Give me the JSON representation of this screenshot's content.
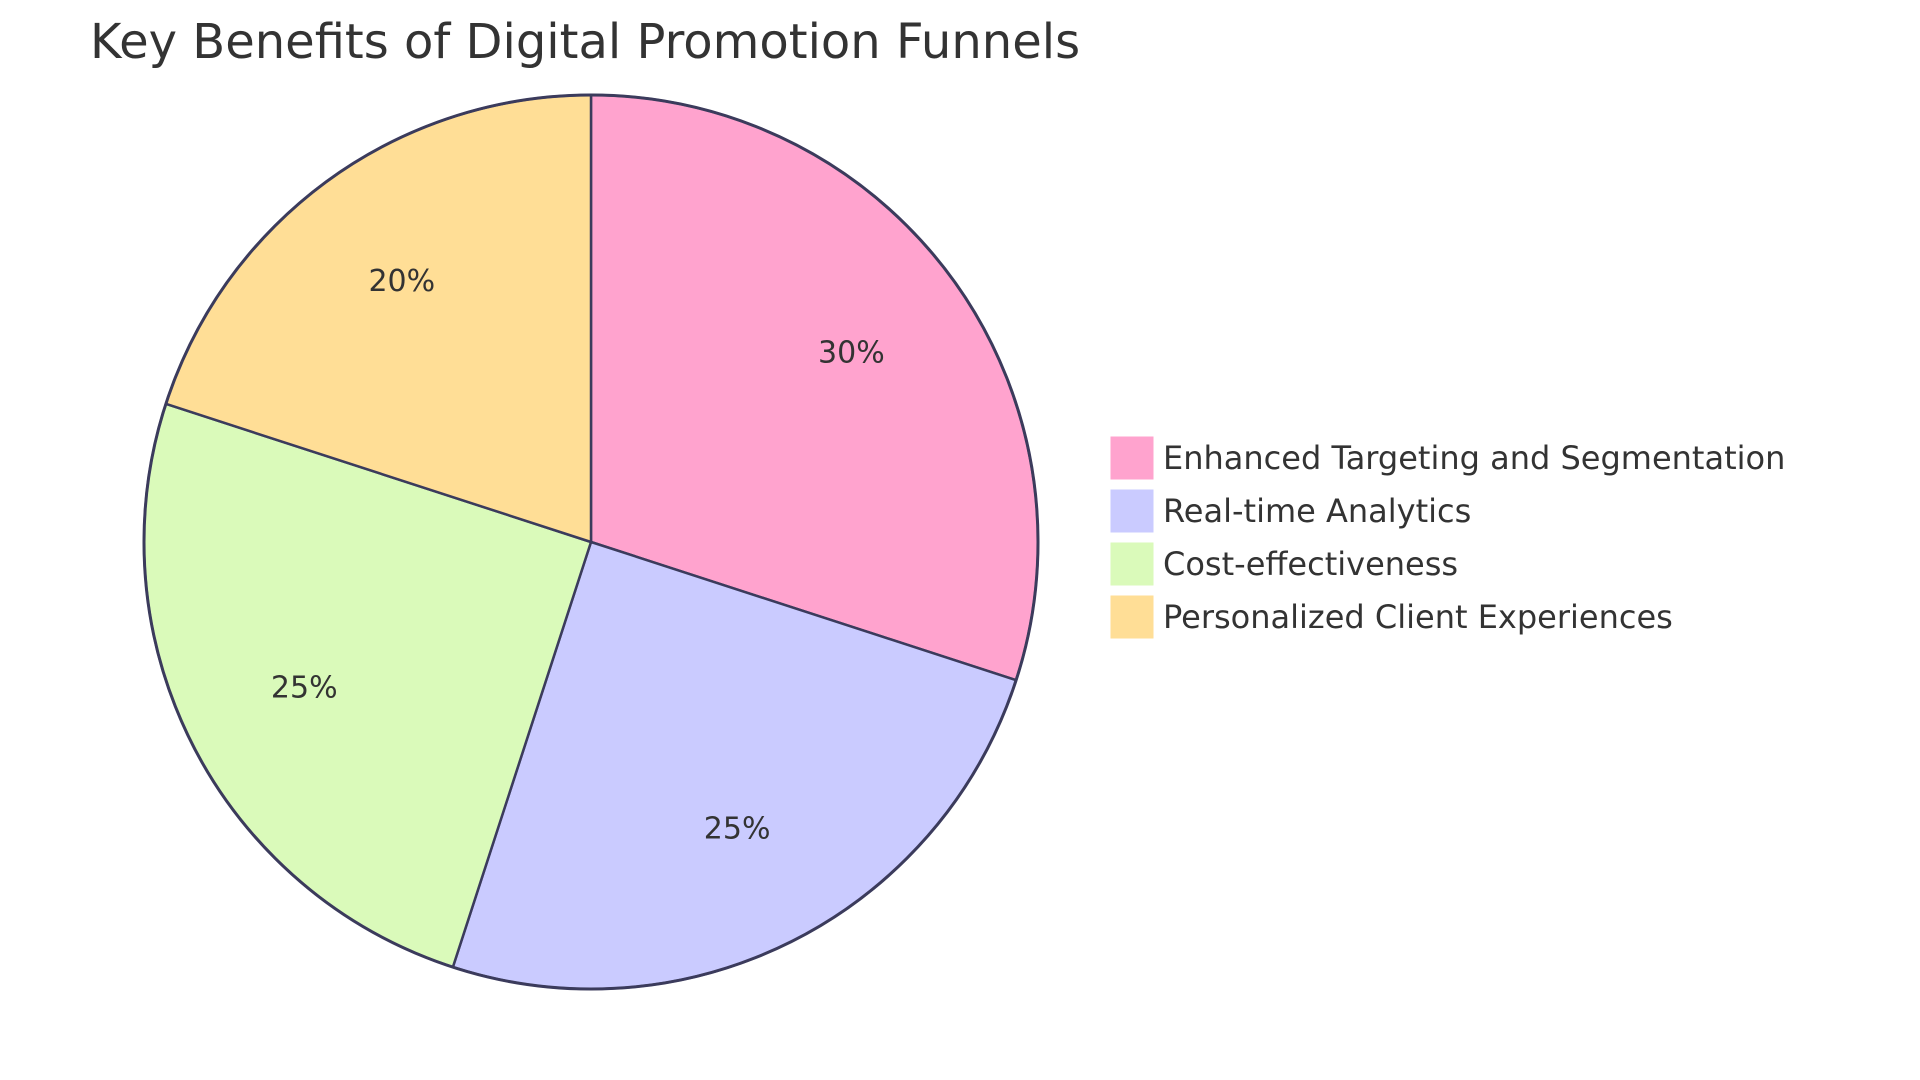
{
  "chart_data": {
    "type": "pie",
    "title": "Key Benefits of Digital Promotion Funnels",
    "slices": [
      {
        "label": "Enhanced Targeting and Segmentation",
        "value": 30,
        "display": "30%",
        "color": "#FFA3CE"
      },
      {
        "label": "Real-time Analytics",
        "value": 25,
        "display": "25%",
        "color": "#CACBFF"
      },
      {
        "label": "Cost-effectiveness",
        "value": 25,
        "display": "25%",
        "color": "#DAFABA"
      },
      {
        "label": "Personalized Client Experiences",
        "value": 20,
        "display": "20%",
        "color": "#FFDE96"
      }
    ],
    "stroke_color": "#3B3B5C",
    "legend_position": "right",
    "start_angle": "top",
    "direction": "clockwise"
  }
}
